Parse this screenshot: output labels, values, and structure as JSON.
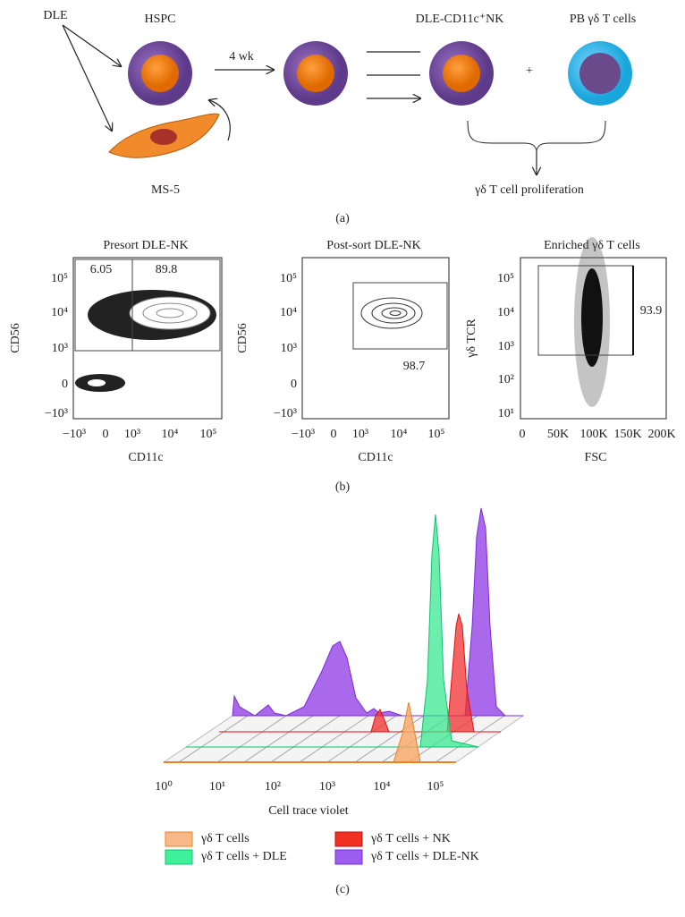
{
  "panel_a": {
    "dle": "DLE",
    "hspc": "HSPC",
    "duration": "4 wk",
    "nk": "DLE-CD11c⁺NK",
    "tcells": "PB γδ T cells",
    "plus": "+",
    "ms5": "MS-5",
    "outcome": "γδ T cell proliferation",
    "label": "(a)"
  },
  "panel_b": {
    "plots": [
      {
        "title": "Presort DLE-NK",
        "x_label": "CD11c",
        "y_label": "CD56",
        "xticks": [
          "−10³",
          "0",
          "10³",
          "10⁴",
          "10⁵"
        ],
        "yticks": [
          "10⁵",
          "10⁴",
          "10³",
          "0",
          "−10³"
        ],
        "gates": [
          "6.05",
          "89.8"
        ]
      },
      {
        "title": "Post-sort DLE-NK",
        "x_label": "CD11c",
        "y_label": "CD56",
        "xticks": [
          "−10³",
          "0",
          "10³",
          "10⁴",
          "10⁵"
        ],
        "yticks": [
          "10⁵",
          "10⁴",
          "10³",
          "0",
          "−10³"
        ],
        "gates": [
          "98.7"
        ]
      },
      {
        "title": "Enriched γδ T cells",
        "x_label": "FSC",
        "y_label": "γδ TCR",
        "xticks": [
          "0",
          "50K",
          "100K",
          "150K",
          "200K"
        ],
        "yticks": [
          "10⁵",
          "10⁴",
          "10³",
          "10²",
          "10¹"
        ],
        "gates": [
          "93.9"
        ]
      }
    ],
    "label": "(b)"
  },
  "panel_c": {
    "xticks": [
      "10⁰",
      "10¹",
      "10²",
      "10³",
      "10⁴",
      "10⁵"
    ],
    "x_label": "Cell trace violet",
    "legend": [
      "γδ T cells",
      "γδ T cells + DLE",
      "γδ T cells + NK",
      "γδ T cells + DLE-NK"
    ],
    "label": "(c)"
  }
}
